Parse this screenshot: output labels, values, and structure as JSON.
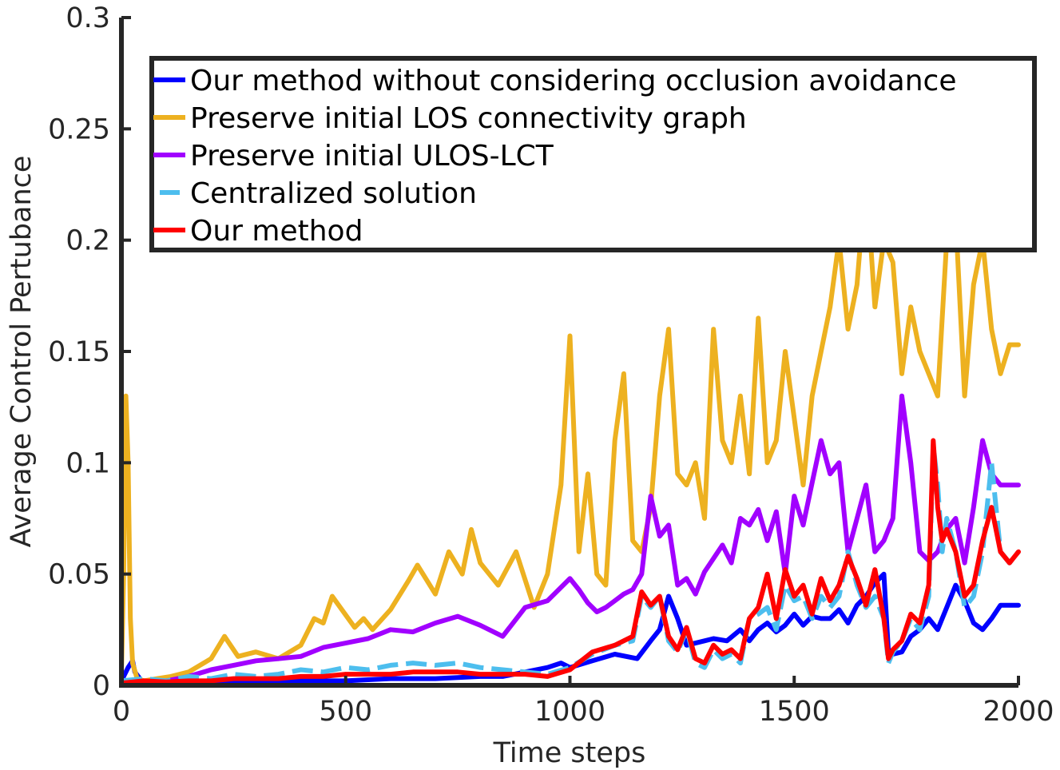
{
  "chart_data": {
    "type": "line",
    "title": "",
    "xlabel": "Time steps",
    "ylabel": "Average Control Pertubance",
    "xlim": [
      0,
      2000
    ],
    "ylim": [
      0,
      0.3
    ],
    "xticks": [
      0,
      500,
      1000,
      1500,
      2000
    ],
    "xtick_labels": [
      "0",
      "500",
      "1000",
      "1500",
      "2000"
    ],
    "yticks": [
      0,
      0.05,
      0.1,
      0.15,
      0.2,
      0.25,
      0.3
    ],
    "ytick_labels": [
      "0",
      "0.05",
      "0.1",
      "0.15",
      "0.2",
      "0.25",
      "0.3"
    ],
    "grid": false,
    "legend_position": "top-right",
    "series": [
      {
        "name": "Our method without considering occlusion avoidance",
        "color": "#0000ff",
        "style": "solid",
        "x": [
          0,
          15,
          25,
          30,
          45,
          60,
          100,
          200,
          300,
          400,
          500,
          600,
          700,
          800,
          850,
          900,
          950,
          980,
          1000,
          1050,
          1100,
          1150,
          1180,
          1200,
          1220,
          1240,
          1260,
          1280,
          1300,
          1320,
          1350,
          1380,
          1400,
          1420,
          1440,
          1460,
          1480,
          1500,
          1520,
          1540,
          1560,
          1580,
          1600,
          1620,
          1640,
          1660,
          1680,
          1700,
          1710,
          1720,
          1740,
          1760,
          1780,
          1800,
          1820,
          1840,
          1860,
          1880,
          1900,
          1920,
          1940,
          1960,
          1980,
          2000
        ],
        "y": [
          0.002,
          0.008,
          0.011,
          0.006,
          0.002,
          0.001,
          0.001,
          0.001,
          0.0015,
          0.002,
          0.002,
          0.003,
          0.003,
          0.004,
          0.004,
          0.006,
          0.008,
          0.01,
          0.008,
          0.011,
          0.014,
          0.012,
          0.02,
          0.025,
          0.04,
          0.03,
          0.018,
          0.019,
          0.02,
          0.021,
          0.02,
          0.025,
          0.02,
          0.025,
          0.028,
          0.024,
          0.027,
          0.032,
          0.027,
          0.031,
          0.03,
          0.03,
          0.034,
          0.028,
          0.036,
          0.04,
          0.046,
          0.05,
          0.015,
          0.014,
          0.015,
          0.022,
          0.025,
          0.03,
          0.025,
          0.035,
          0.045,
          0.038,
          0.028,
          0.025,
          0.03,
          0.036,
          0.036,
          0.036
        ]
      },
      {
        "name": "Preserve initial LOS connectivity graph",
        "color": "#edb120",
        "style": "solid",
        "x": [
          0,
          5,
          10,
          15,
          20,
          25,
          35,
          50,
          80,
          110,
          150,
          200,
          230,
          260,
          300,
          350,
          400,
          430,
          450,
          470,
          520,
          540,
          560,
          600,
          640,
          660,
          700,
          730,
          760,
          780,
          800,
          840,
          880,
          920,
          950,
          980,
          1000,
          1020,
          1040,
          1060,
          1080,
          1100,
          1120,
          1140,
          1160,
          1180,
          1200,
          1220,
          1240,
          1260,
          1280,
          1300,
          1320,
          1340,
          1360,
          1380,
          1400,
          1420,
          1440,
          1460,
          1480,
          1500,
          1520,
          1540,
          1560,
          1580,
          1600,
          1620,
          1640,
          1660,
          1680,
          1700,
          1720,
          1740,
          1760,
          1780,
          1800,
          1820,
          1840,
          1860,
          1880,
          1900,
          1920,
          1940,
          1960,
          1980,
          2000
        ],
        "y": [
          0.005,
          0.05,
          0.13,
          0.1,
          0.03,
          0.01,
          0.003,
          0.002,
          0.003,
          0.004,
          0.006,
          0.012,
          0.022,
          0.013,
          0.015,
          0.012,
          0.018,
          0.03,
          0.028,
          0.04,
          0.026,
          0.03,
          0.025,
          0.034,
          0.047,
          0.054,
          0.041,
          0.06,
          0.05,
          0.07,
          0.055,
          0.045,
          0.06,
          0.035,
          0.05,
          0.09,
          0.157,
          0.06,
          0.095,
          0.05,
          0.045,
          0.11,
          0.14,
          0.065,
          0.06,
          0.08,
          0.13,
          0.16,
          0.095,
          0.09,
          0.1,
          0.075,
          0.16,
          0.11,
          0.1,
          0.13,
          0.095,
          0.165,
          0.1,
          0.11,
          0.15,
          0.12,
          0.09,
          0.13,
          0.15,
          0.17,
          0.2,
          0.16,
          0.18,
          0.23,
          0.17,
          0.2,
          0.19,
          0.14,
          0.17,
          0.15,
          0.14,
          0.13,
          0.2,
          0.21,
          0.13,
          0.18,
          0.2,
          0.16,
          0.14,
          0.153,
          0.153
        ]
      },
      {
        "name": "Preserve initial ULOS-LCT",
        "color": "#a100ff",
        "style": "solid",
        "x": [
          0,
          50,
          100,
          150,
          200,
          250,
          300,
          350,
          400,
          450,
          500,
          550,
          600,
          650,
          700,
          750,
          800,
          850,
          900,
          950,
          980,
          1000,
          1020,
          1040,
          1060,
          1080,
          1100,
          1120,
          1140,
          1160,
          1180,
          1200,
          1220,
          1240,
          1260,
          1280,
          1300,
          1320,
          1340,
          1360,
          1380,
          1400,
          1420,
          1440,
          1460,
          1480,
          1500,
          1520,
          1540,
          1560,
          1580,
          1600,
          1620,
          1640,
          1660,
          1680,
          1700,
          1720,
          1740,
          1760,
          1780,
          1800,
          1820,
          1840,
          1860,
          1880,
          1900,
          1920,
          1940,
          1960,
          1980,
          2000
        ],
        "y": [
          0.001,
          0.001,
          0.002,
          0.004,
          0.007,
          0.009,
          0.011,
          0.012,
          0.013,
          0.017,
          0.019,
          0.021,
          0.025,
          0.024,
          0.028,
          0.031,
          0.027,
          0.022,
          0.035,
          0.038,
          0.044,
          0.048,
          0.043,
          0.037,
          0.033,
          0.035,
          0.038,
          0.041,
          0.043,
          0.05,
          0.085,
          0.067,
          0.072,
          0.045,
          0.048,
          0.041,
          0.051,
          0.057,
          0.063,
          0.055,
          0.075,
          0.072,
          0.079,
          0.065,
          0.078,
          0.05,
          0.085,
          0.072,
          0.091,
          0.11,
          0.095,
          0.1,
          0.06,
          0.075,
          0.09,
          0.06,
          0.065,
          0.075,
          0.13,
          0.1,
          0.06,
          0.056,
          0.06,
          0.07,
          0.075,
          0.055,
          0.08,
          0.11,
          0.095,
          0.09,
          0.09,
          0.09
        ]
      },
      {
        "name": "Centralized solution",
        "color": "#4dbeee",
        "style": "dashed",
        "x": [
          0,
          50,
          100,
          150,
          200,
          250,
          300,
          350,
          400,
          450,
          500,
          550,
          600,
          650,
          700,
          750,
          800,
          850,
          900,
          950,
          1000,
          1050,
          1100,
          1140,
          1160,
          1180,
          1200,
          1220,
          1240,
          1260,
          1280,
          1300,
          1320,
          1340,
          1360,
          1380,
          1400,
          1420,
          1440,
          1460,
          1480,
          1500,
          1520,
          1540,
          1560,
          1580,
          1600,
          1620,
          1640,
          1660,
          1680,
          1700,
          1710,
          1720,
          1740,
          1760,
          1780,
          1800,
          1810,
          1820,
          1830,
          1840,
          1860,
          1880,
          1900,
          1920,
          1940,
          1960,
          1980,
          2000
        ],
        "y": [
          0.002,
          0.003,
          0.002,
          0.004,
          0.003,
          0.005,
          0.004,
          0.005,
          0.007,
          0.006,
          0.008,
          0.007,
          0.009,
          0.01,
          0.009,
          0.01,
          0.008,
          0.007,
          0.006,
          0.005,
          0.008,
          0.014,
          0.018,
          0.02,
          0.04,
          0.035,
          0.04,
          0.02,
          0.015,
          0.025,
          0.01,
          0.008,
          0.016,
          0.012,
          0.014,
          0.01,
          0.03,
          0.032,
          0.035,
          0.025,
          0.045,
          0.038,
          0.04,
          0.03,
          0.04,
          0.035,
          0.04,
          0.06,
          0.045,
          0.035,
          0.04,
          0.03,
          0.01,
          0.015,
          0.02,
          0.03,
          0.025,
          0.04,
          0.108,
          0.09,
          0.06,
          0.075,
          0.06,
          0.035,
          0.04,
          0.06,
          0.1,
          0.06,
          0.055,
          0.06
        ]
      },
      {
        "name": "Our method",
        "color": "#ff0000",
        "style": "solid",
        "x": [
          0,
          50,
          100,
          150,
          200,
          250,
          300,
          350,
          400,
          450,
          500,
          550,
          600,
          650,
          700,
          750,
          800,
          850,
          900,
          950,
          1000,
          1050,
          1100,
          1140,
          1160,
          1180,
          1200,
          1220,
          1240,
          1260,
          1280,
          1300,
          1320,
          1340,
          1360,
          1380,
          1400,
          1420,
          1440,
          1460,
          1480,
          1500,
          1520,
          1540,
          1560,
          1580,
          1600,
          1620,
          1640,
          1660,
          1680,
          1700,
          1710,
          1720,
          1740,
          1760,
          1780,
          1800,
          1810,
          1820,
          1830,
          1840,
          1860,
          1880,
          1900,
          1920,
          1940,
          1960,
          1980,
          2000
        ],
        "y": [
          0.001,
          0.002,
          0.0015,
          0.002,
          0.002,
          0.003,
          0.003,
          0.003,
          0.004,
          0.004,
          0.005,
          0.005,
          0.005,
          0.006,
          0.006,
          0.006,
          0.005,
          0.005,
          0.005,
          0.004,
          0.007,
          0.015,
          0.018,
          0.022,
          0.042,
          0.036,
          0.04,
          0.022,
          0.016,
          0.026,
          0.012,
          0.01,
          0.018,
          0.014,
          0.016,
          0.012,
          0.03,
          0.035,
          0.05,
          0.03,
          0.052,
          0.04,
          0.045,
          0.032,
          0.048,
          0.038,
          0.045,
          0.058,
          0.048,
          0.036,
          0.052,
          0.03,
          0.012,
          0.016,
          0.02,
          0.032,
          0.028,
          0.045,
          0.11,
          0.08,
          0.065,
          0.07,
          0.06,
          0.04,
          0.045,
          0.065,
          0.08,
          0.06,
          0.055,
          0.06
        ]
      }
    ]
  }
}
